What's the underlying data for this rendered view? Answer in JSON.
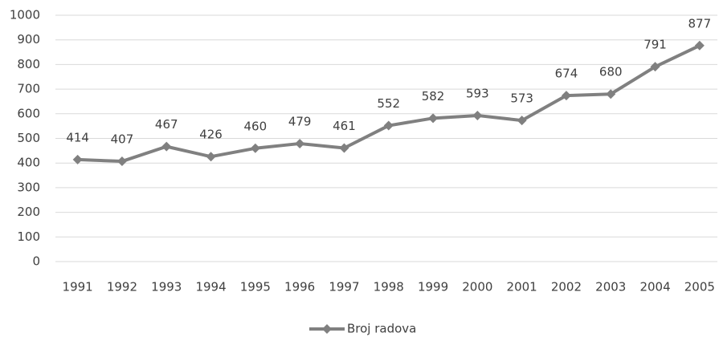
{
  "chart_data": {
    "type": "line",
    "categories": [
      "1991",
      "1992",
      "1993",
      "1994",
      "1995",
      "1996",
      "1997",
      "1998",
      "1999",
      "2000",
      "2001",
      "2002",
      "2003",
      "2004",
      "2005"
    ],
    "series": [
      {
        "name": "Broj radova",
        "color": "#808080",
        "values": [
          414,
          407,
          467,
          426,
          460,
          479,
          461,
          552,
          582,
          593,
          573,
          674,
          680,
          791,
          877
        ]
      }
    ],
    "ylim": [
      0,
      1000
    ],
    "yticks": [
      0,
      100,
      200,
      300,
      400,
      500,
      600,
      700,
      800,
      900,
      1000
    ],
    "grid": true,
    "legend": "bottom"
  }
}
